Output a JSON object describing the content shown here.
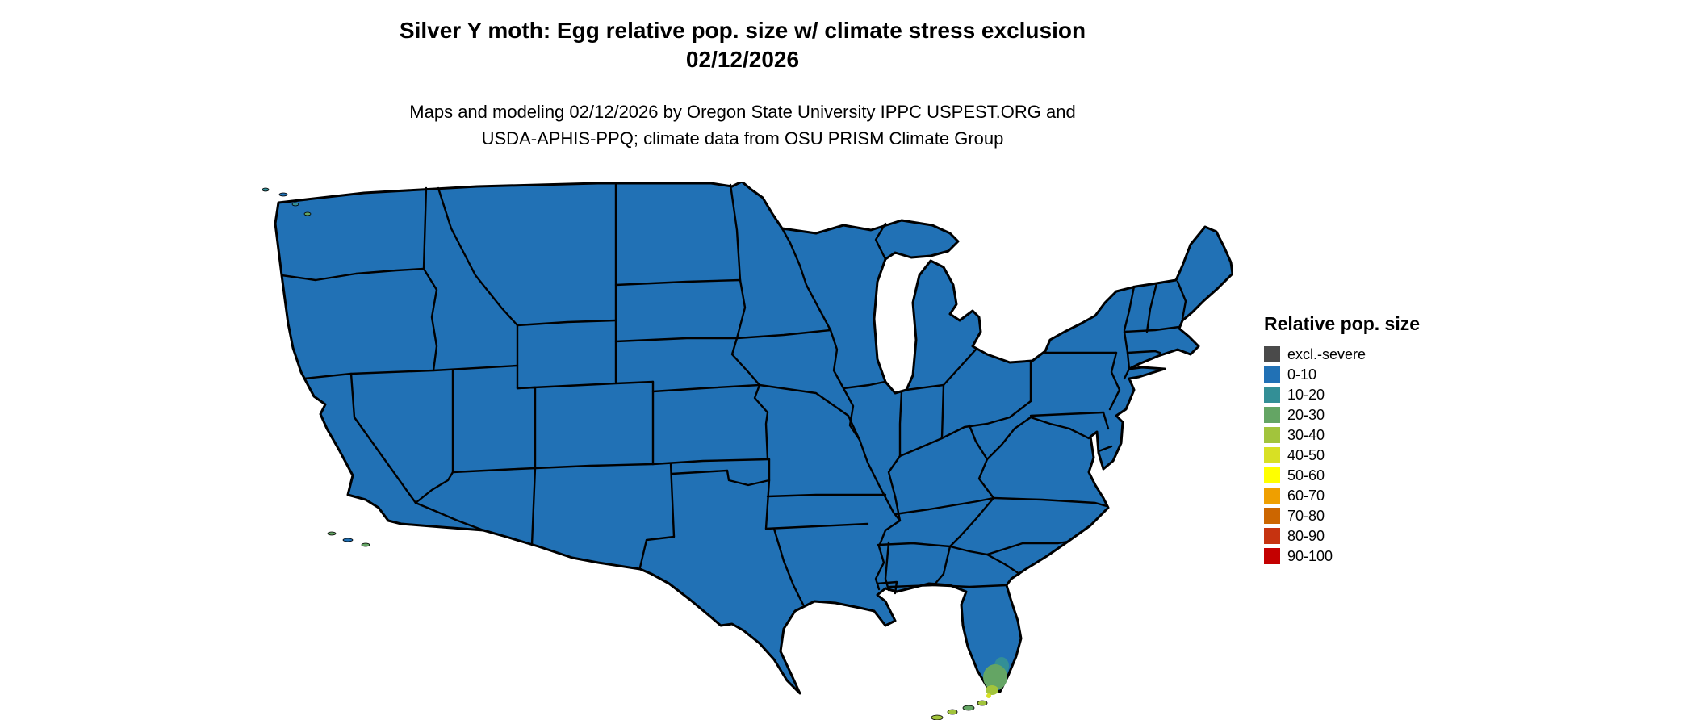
{
  "title": {
    "line1": "Silver Y moth: Egg relative pop. size w/ climate stress exclusion",
    "line2": "02/12/2026"
  },
  "subtitle": {
    "line1": "Maps and modeling 02/12/2026 by Oregon State University IPPC USPEST.ORG and",
    "line2": "USDA-APHIS-PPQ; climate data from OSU PRISM Climate Group"
  },
  "legend": {
    "title": "Relative pop. size",
    "items": [
      {
        "label": "excl.-severe",
        "color": "#4a4a4a"
      },
      {
        "label": "0-10",
        "color": "#2171b5"
      },
      {
        "label": "10-20",
        "color": "#338f96"
      },
      {
        "label": "20-30",
        "color": "#64a564"
      },
      {
        "label": "30-40",
        "color": "#a2c43c"
      },
      {
        "label": "40-50",
        "color": "#d8e024"
      },
      {
        "label": "50-60",
        "color": "#ffff00"
      },
      {
        "label": "60-70",
        "color": "#ef9f00"
      },
      {
        "label": "70-80",
        "color": "#cc6600"
      },
      {
        "label": "80-90",
        "color": "#c63310"
      },
      {
        "label": "90-100",
        "color": "#c40000"
      }
    ]
  },
  "map": {
    "base_fill": "#2171b5",
    "border_color": "#000000",
    "background": "#ffffff",
    "dominant_class": "0-10",
    "hotspots": [
      {
        "region": "southern Florida tip and Keys",
        "classes": [
          "10-20",
          "20-30",
          "30-40",
          "40-50"
        ]
      },
      {
        "region": "southern California coastal islands",
        "classes": [
          "0-10",
          "20-30"
        ]
      },
      {
        "region": "Puget Sound / NW Washington coast",
        "classes": [
          "0-10",
          "10-20",
          "20-30"
        ]
      }
    ]
  }
}
